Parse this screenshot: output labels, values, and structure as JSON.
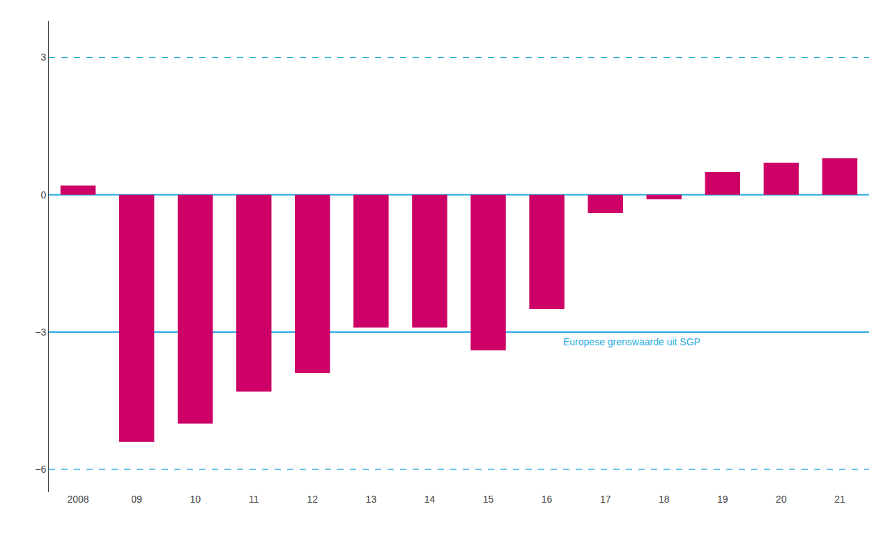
{
  "chart_data": {
    "type": "bar",
    "categories": [
      "2008",
      "09",
      "10",
      "11",
      "12",
      "13",
      "14",
      "15",
      "16",
      "17",
      "18",
      "19",
      "20",
      "21"
    ],
    "values": [
      0.2,
      -5.4,
      -5.0,
      -4.3,
      -3.9,
      -2.9,
      -2.9,
      -3.4,
      -2.5,
      -0.4,
      -0.1,
      0.5,
      0.7,
      0.8
    ],
    "color": "#CC0066",
    "ylim": [
      -6.5,
      3.8
    ],
    "yticks": [
      {
        "value": -6,
        "label": "−6"
      },
      {
        "value": -3,
        "label": "−3"
      },
      0,
      3
    ],
    "grid": false,
    "lines": [
      {
        "value": 0,
        "color": "#29ABE2",
        "line_style": "solid"
      },
      {
        "value": -3,
        "color": "#29ABE2",
        "line_style": "solid",
        "label": "Europese grenswaarde uit SGP"
      },
      {
        "value": 3,
        "color": "#29ABE2",
        "line_style": "dashed"
      },
      {
        "value": -6,
        "color": "#29ABE2",
        "line_style": "dashed"
      }
    ]
  }
}
